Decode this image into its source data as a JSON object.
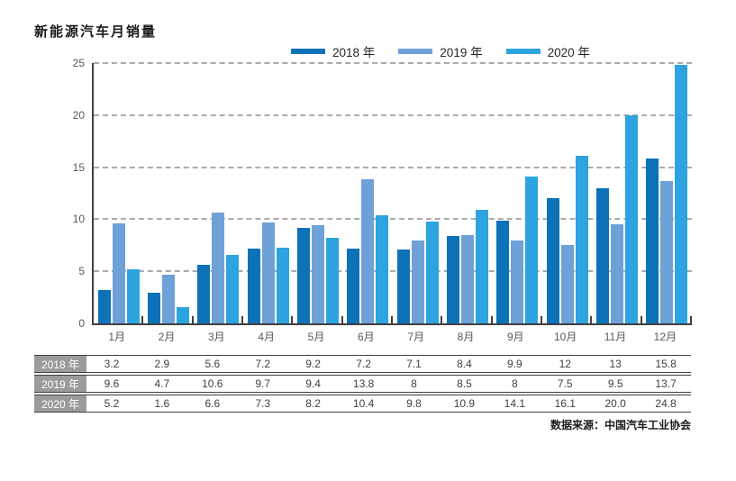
{
  "title": "新能源汽车月销量",
  "legend": [
    {
      "label": "2018 年",
      "color": "#0e72b8"
    },
    {
      "label": "2019 年",
      "color": "#6ea1d8"
    },
    {
      "label": "2020 年",
      "color": "#2da4df"
    }
  ],
  "chart_data": {
    "type": "bar",
    "title": "新能源汽车月销量",
    "categories": [
      "1月",
      "2月",
      "3月",
      "4月",
      "5月",
      "6月",
      "7月",
      "8月",
      "9月",
      "10月",
      "11月",
      "12月"
    ],
    "series": [
      {
        "name": "2018 年",
        "color": "#0e72b8",
        "values": [
          3.2,
          2.9,
          5.6,
          7.2,
          9.2,
          7.2,
          7.1,
          8.4,
          9.9,
          12,
          13,
          15.8
        ]
      },
      {
        "name": "2019 年",
        "color": "#6ea1d8",
        "values": [
          9.6,
          4.7,
          10.6,
          9.7,
          9.4,
          13.8,
          8,
          8.5,
          8,
          7.5,
          9.5,
          13.7
        ]
      },
      {
        "name": "2020 年",
        "color": "#2da4df",
        "values": [
          5.2,
          1.6,
          6.6,
          7.3,
          8.2,
          10.4,
          9.8,
          10.9,
          14.1,
          16.1,
          20.0,
          24.8
        ]
      }
    ],
    "xlabel": "",
    "ylabel": "",
    "ylim": [
      0,
      25
    ],
    "yticks": [
      "0",
      "5",
      "10",
      "15",
      "20",
      "25"
    ],
    "grid": "dashed-horizontal",
    "legend_position": "top"
  },
  "table": {
    "rows": [
      {
        "label": "2018 年",
        "values": [
          "3.2",
          "2.9",
          "5.6",
          "7.2",
          "9.2",
          "7.2",
          "7.1",
          "8.4",
          "9.9",
          "12",
          "13",
          "15.8"
        ]
      },
      {
        "label": "2019 年",
        "values": [
          "9.6",
          "4.7",
          "10.6",
          "9.7",
          "9.4",
          "13.8",
          "8",
          "8.5",
          "8",
          "7.5",
          "9.5",
          "13.7"
        ]
      },
      {
        "label": "2020 年",
        "values": [
          "5.2",
          "1.6",
          "6.6",
          "7.3",
          "8.2",
          "10.4",
          "9.8",
          "10.9",
          "14.1",
          "16.1",
          "20.0",
          "24.8"
        ]
      }
    ]
  },
  "footer": {
    "source_label": "数据来源：中国汽车工业协会"
  },
  "colors": {
    "axis": "#404040",
    "grid": "#ababab",
    "tick_text": "#595959",
    "table_label_bg": "#9b9b9b",
    "table_text": "#404040"
  }
}
